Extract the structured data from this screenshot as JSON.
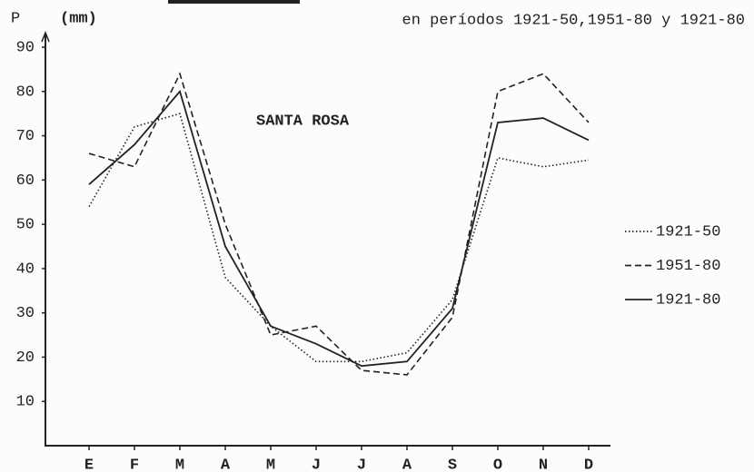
{
  "chart_data": {
    "type": "line",
    "title": "en períodos 1921-50,1951-80 y 1921-80",
    "ylabel": "P",
    "yunit": "(mm)",
    "annotation": "SANTA ROSA",
    "categories": [
      "E",
      "F",
      "M",
      "A",
      "M",
      "J",
      "J",
      "A",
      "S",
      "O",
      "N",
      "D"
    ],
    "series": [
      {
        "name": "1921-50",
        "color": "#222222",
        "dash": "dotted",
        "values": [
          54,
          72,
          75,
          38,
          27,
          19,
          19,
          21,
          33,
          65,
          63,
          64.5
        ]
      },
      {
        "name": "1951-80",
        "color": "#222222",
        "dash": "dashed",
        "values": [
          66,
          63,
          84,
          50,
          25,
          27,
          17,
          16,
          29,
          80,
          84,
          73
        ]
      },
      {
        "name": "1921-80",
        "color": "#222222",
        "dash": "solid",
        "values": [
          59,
          68,
          80,
          45,
          27,
          23,
          18,
          19,
          31,
          73,
          74,
          69
        ]
      }
    ],
    "ylim": [
      0,
      90
    ],
    "yticks": [
      10,
      20,
      30,
      40,
      50,
      60,
      70,
      80,
      90
    ],
    "grid": false,
    "legend": "right"
  }
}
